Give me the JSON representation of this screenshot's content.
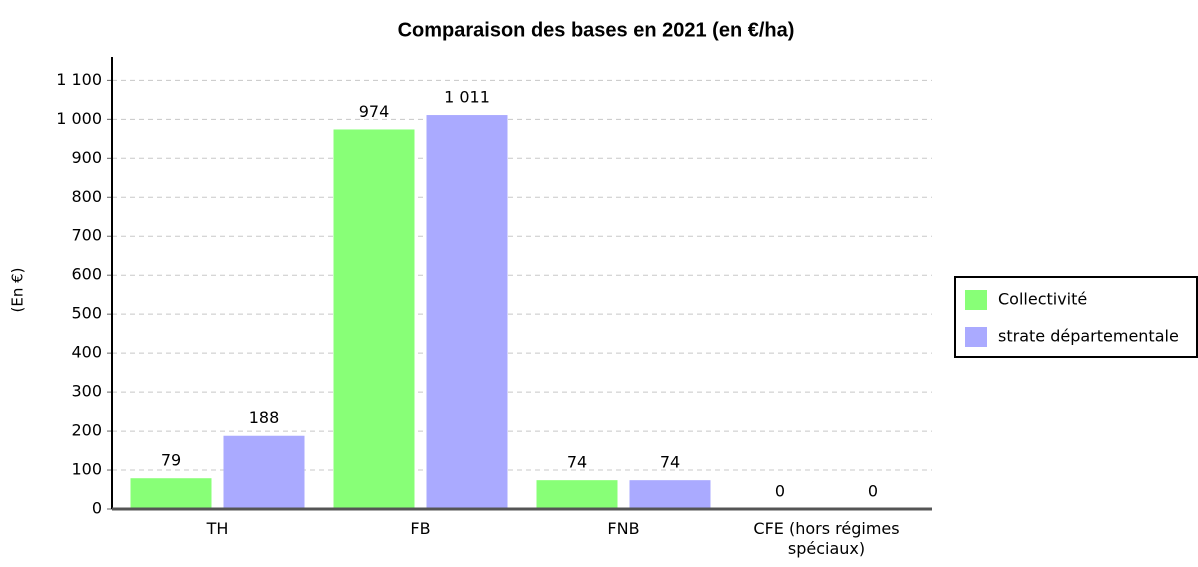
{
  "chart_data": {
    "type": "bar",
    "title": "Comparaison des bases en 2021 (en €/ha)",
    "y_label": "(En €)",
    "categories": [
      "TH",
      "FB",
      "FNB",
      "CFE (hors régimes spéciaux)"
    ],
    "series": [
      {
        "name": "Collectivité",
        "color": "#88ff77",
        "values": [
          79,
          974,
          74,
          0
        ]
      },
      {
        "name": "strate départementale",
        "color": "#aaaaff",
        "values": [
          188,
          1011,
          74,
          0
        ],
        "value_labels": [
          "188",
          "1 011",
          "74",
          "0"
        ]
      }
    ],
    "ylim": [
      0,
      1160
    ],
    "yticks": [
      0,
      100,
      200,
      300,
      400,
      500,
      600,
      700,
      800,
      900,
      {
        "value": 1000,
        "label": "1 000"
      },
      {
        "value": 1100,
        "label": "1 100"
      }
    ],
    "grid": true,
    "legend": "right"
  }
}
